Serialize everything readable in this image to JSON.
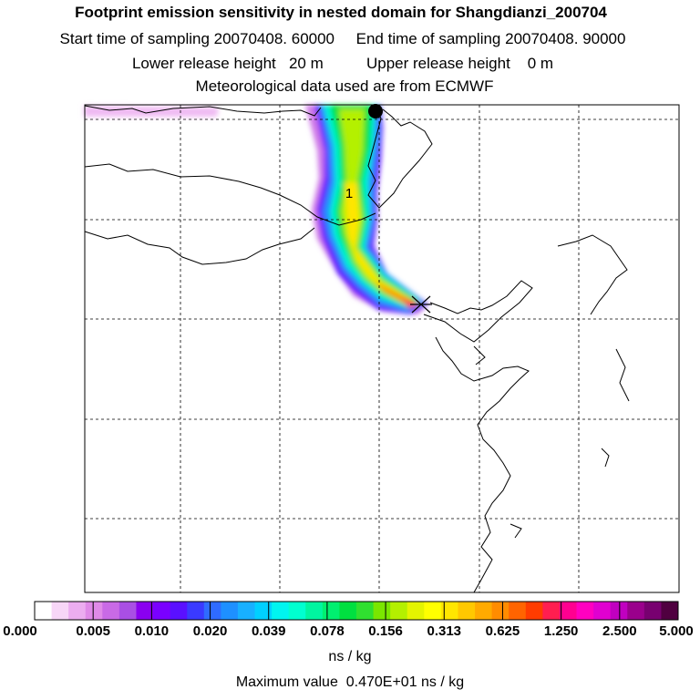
{
  "header": {
    "title": "Footprint emission sensitivity in nested domain for Shangdianzi_200704",
    "start_label": "Start time of sampling 20070408. 60000",
    "end_label": "End time of sampling 20070408. 90000",
    "lower_label": "Lower release height   20 m",
    "upper_label": "Upper release height    0 m",
    "met_label": "Meteorological data used are from ECMWF"
  },
  "map": {
    "marker_label": "1",
    "release_marker": "filled-circle",
    "station_marker": "star-cross"
  },
  "colorbar": {
    "tick_labels": [
      "0.000",
      "0.005",
      "0.010",
      "0.020",
      "0.039",
      "0.078",
      "0.156",
      "0.313",
      "0.625",
      "1.250",
      "2.500",
      "5.000"
    ],
    "unit": "ns / kg",
    "colors": [
      "#ffffff",
      "#f7d6f7",
      "#ecadf0",
      "#e08ae8",
      "#c96ae6",
      "#a94fe4",
      "#8a00f0",
      "#7a00ff",
      "#5a10ff",
      "#3a3aff",
      "#2f6bff",
      "#1e90ff",
      "#18b0ff",
      "#00d0ff",
      "#00f5f0",
      "#00ffd0",
      "#00f5a0",
      "#00f070",
      "#00e040",
      "#30e030",
      "#7ae600",
      "#b4f000",
      "#e4f400",
      "#ffff00",
      "#ffe600",
      "#ffc800",
      "#ffaa00",
      "#ff8c00",
      "#ff6400",
      "#ff3c00",
      "#ff1e50",
      "#ff0090",
      "#ff00c0",
      "#e000d0",
      "#c000c0",
      "#9a008c",
      "#780070",
      "#500040"
    ]
  },
  "maximum_value_label": "Maximum value  0.470E+01 ns / kg"
}
